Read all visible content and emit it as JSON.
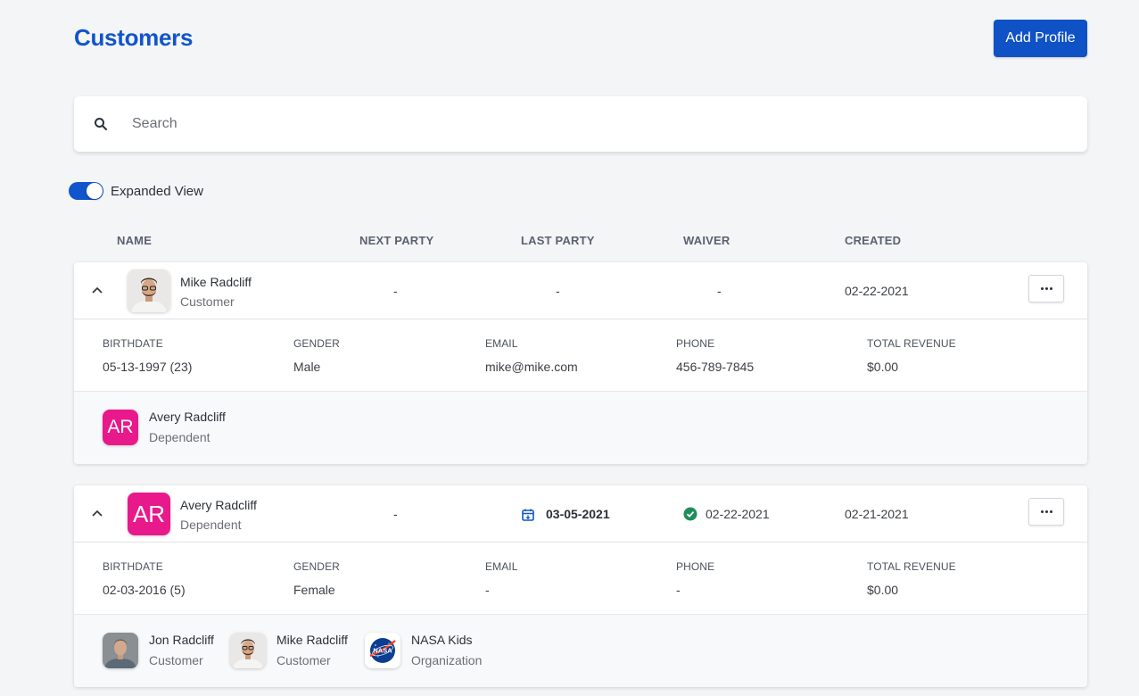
{
  "header": {
    "title": "Customers",
    "add_button_label": "Add Profile"
  },
  "search": {
    "placeholder": "Search",
    "value": ""
  },
  "expanded_view": {
    "label": "Expanded View",
    "enabled": true
  },
  "table": {
    "columns": [
      "NAME",
      "NEXT PARTY",
      "LAST PARTY",
      "WAIVER",
      "CREATED"
    ],
    "detail_labels": [
      "BIRTHDATE",
      "GENDER",
      "EMAIL",
      "PHONE",
      "TOTAL REVENUE"
    ],
    "rows": [
      {
        "name": "Mike Radcliff",
        "role": "Customer",
        "avatar": "photo-mike",
        "next_party": "-",
        "last_party": "-",
        "waiver": "-",
        "created": "02-22-2021",
        "birthdate": "05-13-1997 (23)",
        "gender": "Male",
        "email": "mike@mike.com",
        "phone": "456-789-7845",
        "total_revenue": "$0.00",
        "relations": [
          {
            "name": "Avery Radcliff",
            "role": "Dependent",
            "initials": "AR"
          }
        ]
      },
      {
        "name": "Avery Radcliff",
        "role": "Dependent",
        "initials": "AR",
        "next_party": "-",
        "last_party": "03-05-2021",
        "waiver": "02-22-2021",
        "created": "02-21-2021",
        "birthdate": "02-03-2016 (5)",
        "gender": "Female",
        "email": "-",
        "phone": "-",
        "total_revenue": "$0.00",
        "relations": [
          {
            "name": "Jon Radcliff",
            "role": "Customer",
            "avatar": "photo-jon"
          },
          {
            "name": "Mike Radcliff",
            "role": "Customer",
            "avatar": "photo-mike"
          },
          {
            "name": "NASA Kids",
            "role": "Organization",
            "avatar": "nasa-logo",
            "logo_text": "NASA"
          }
        ]
      }
    ]
  },
  "colors": {
    "primary": "#1155cc",
    "avatar_pink": "#e8198b",
    "success": "#1e8e5a"
  }
}
